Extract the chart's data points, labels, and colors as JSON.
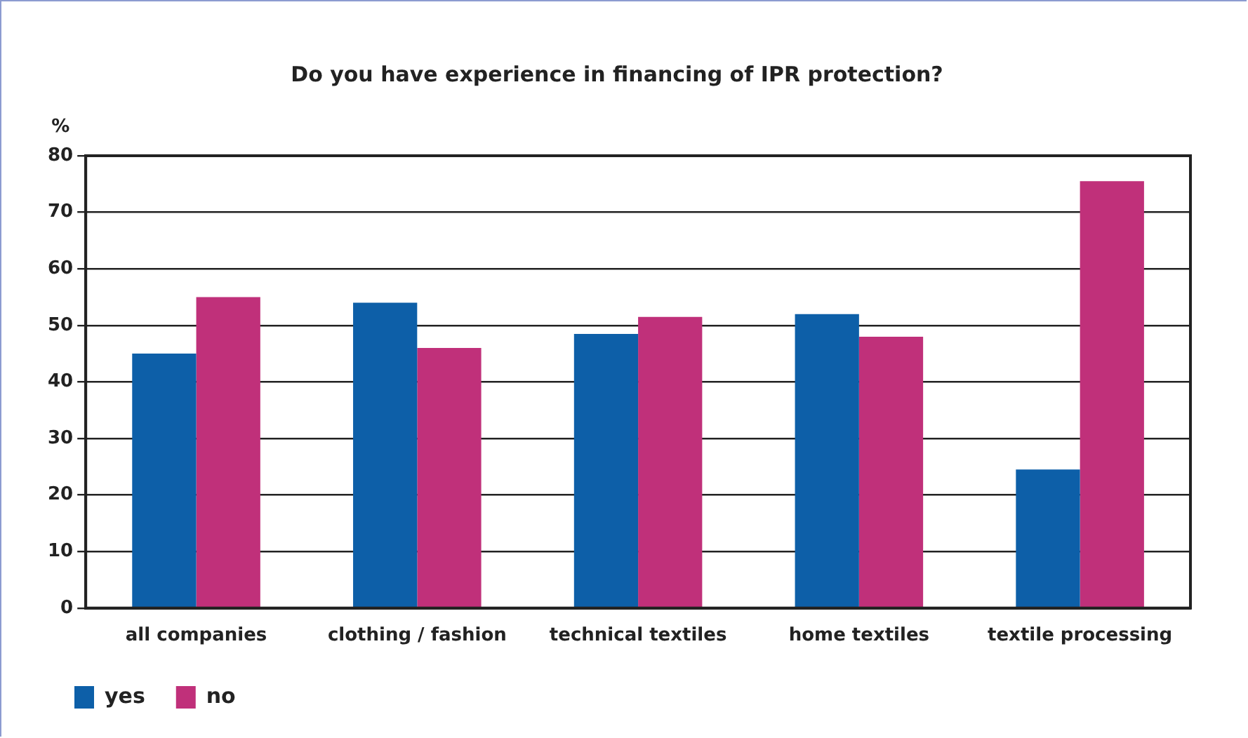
{
  "chart_data": {
    "type": "bar",
    "title": "Do you have experience in financing of IPR protection?",
    "ylabel": "%",
    "categories": [
      "all companies",
      "clothing / fashion",
      "technical textiles",
      "home textiles",
      "textile processing"
    ],
    "series": [
      {
        "name": "yes",
        "color": "#0d5fa8",
        "values": [
          45,
          54,
          48.5,
          52,
          24.5
        ]
      },
      {
        "name": "no",
        "color": "#c0307a",
        "values": [
          55,
          46,
          51.5,
          48,
          75.5
        ]
      }
    ],
    "ylim": [
      0,
      80
    ],
    "yticks": [
      0,
      10,
      20,
      30,
      40,
      50,
      60,
      70,
      80
    ],
    "grid": "y",
    "legend": "bottom left"
  }
}
